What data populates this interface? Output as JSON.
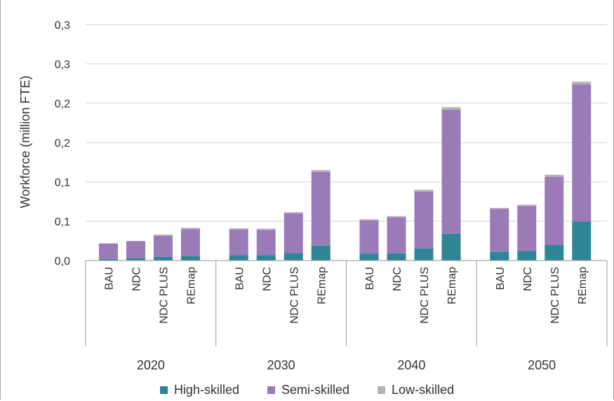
{
  "chart_data": {
    "type": "bar",
    "stacked": true,
    "ylabel": "Workforce (million FTE)",
    "yticks": [
      "0,0",
      "0,1",
      "0,1",
      "0,2",
      "0,2",
      "0,3",
      "0,3"
    ],
    "ylim": [
      0,
      0.3
    ],
    "grid": true,
    "legend_position": "bottom",
    "groups": [
      {
        "label": "2020",
        "categories": [
          "BAU",
          "NDC",
          "NDC PLUS",
          "REmap"
        ]
      },
      {
        "label": "2030",
        "categories": [
          "BAU",
          "NDC",
          "NDC PLUS",
          "REmap"
        ]
      },
      {
        "label": "2040",
        "categories": [
          "BAU",
          "NDC",
          "NDC PLUS",
          "REmap"
        ]
      },
      {
        "label": "2050",
        "categories": [
          "BAU",
          "NDC",
          "NDC PLUS",
          "REmap"
        ]
      }
    ],
    "series": [
      {
        "name": "High-skilled",
        "color": "#2e8596",
        "values": [
          0.002,
          0.003,
          0.0045,
          0.006,
          0.007,
          0.007,
          0.0095,
          0.019,
          0.0085,
          0.009,
          0.0155,
          0.034,
          0.011,
          0.012,
          0.02,
          0.0495
        ]
      },
      {
        "name": "Semi-skilled",
        "color": "#9a7bb8",
        "values": [
          0.0195,
          0.0215,
          0.027,
          0.034,
          0.0325,
          0.032,
          0.0505,
          0.0935,
          0.0425,
          0.046,
          0.072,
          0.1575,
          0.0545,
          0.0575,
          0.0865,
          0.1745
        ]
      },
      {
        "name": "Low-skilled",
        "color": "#b3b3b3",
        "values": [
          0.0005,
          0.0005,
          0.0015,
          0.0015,
          0.0015,
          0.0015,
          0.0015,
          0.0025,
          0.0015,
          0.0015,
          0.0025,
          0.0035,
          0.0015,
          0.0015,
          0.0025,
          0.0035
        ]
      }
    ]
  }
}
